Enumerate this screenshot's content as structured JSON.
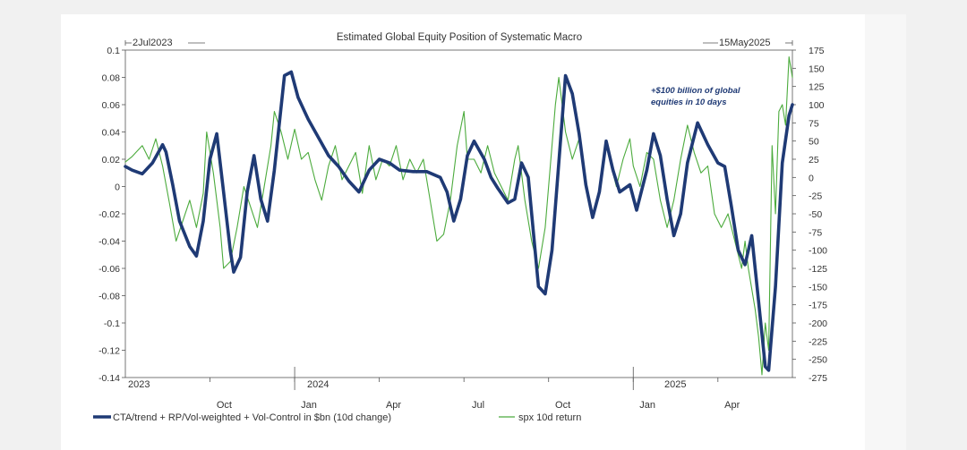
{
  "chart_data": {
    "type": "line",
    "title": "Estimated Global Equity Position of Systematic Macro",
    "range_start_label": "2Jul2023",
    "range_end_label": "15May2025",
    "annotation": "+$100 billion of global\nequities in 10 days",
    "year_labels": [
      "2023",
      "2024",
      "2025"
    ],
    "x_tick_labels": [
      "Oct",
      "Jan",
      "Apr",
      "Jul",
      "Oct",
      "Jan",
      "Apr"
    ],
    "left_axis": {
      "ylim": [
        -0.14,
        0.1
      ],
      "ticks": [
        "0.1",
        "0.08",
        "0.06",
        "0.04",
        "0.02",
        "0",
        "-0.02",
        "-0.04",
        "-0.06",
        "-0.08",
        "-0.1",
        "-0.12",
        "-0.14"
      ]
    },
    "right_axis": {
      "ylim": [
        -275,
        175
      ],
      "ticks": [
        "175",
        "150",
        "125",
        "100",
        "75",
        "50",
        "25",
        "0",
        "-25",
        "-50",
        "-75",
        "-100",
        "-125",
        "-150",
        "-175",
        "-200",
        "-225",
        "-250",
        "-275"
      ]
    },
    "legend": {
      "position": "bottom",
      "entries": [
        "CTA/trend + RP/Vol-weighted + Vol-Control in $bn (10d change)",
        "spx 10d return"
      ]
    },
    "colors": {
      "cta": "#1f3a75",
      "spx": "#4cab3d"
    },
    "series": [
      {
        "name": "CTA/trend + RP/Vol-weighted + Vol-Control in $bn (10d change)",
        "axis": "right",
        "color": "#1f3a75",
        "points": [
          [
            2023.5,
            15
          ],
          [
            2023.52,
            10
          ],
          [
            2023.55,
            5
          ],
          [
            2023.58,
            20
          ],
          [
            2023.61,
            45
          ],
          [
            2023.62,
            35
          ],
          [
            2023.64,
            -10
          ],
          [
            2023.66,
            -60
          ],
          [
            2023.69,
            -95
          ],
          [
            2023.71,
            -108
          ],
          [
            2023.73,
            -60
          ],
          [
            2023.75,
            25
          ],
          [
            2023.77,
            60
          ],
          [
            2023.79,
            -20
          ],
          [
            2023.81,
            -100
          ],
          [
            2023.82,
            -130
          ],
          [
            2023.84,
            -110
          ],
          [
            2023.86,
            -20
          ],
          [
            2023.88,
            30
          ],
          [
            2023.9,
            -30
          ],
          [
            2023.92,
            -60
          ],
          [
            2023.94,
            10
          ],
          [
            2023.97,
            140
          ],
          [
            2023.99,
            145
          ],
          [
            2024.01,
            110
          ],
          [
            2024.04,
            80
          ],
          [
            2024.07,
            55
          ],
          [
            2024.1,
            30
          ],
          [
            2024.13,
            15
          ],
          [
            2024.16,
            -5
          ],
          [
            2024.19,
            -20
          ],
          [
            2024.22,
            10
          ],
          [
            2024.25,
            25
          ],
          [
            2024.28,
            20
          ],
          [
            2024.31,
            10
          ],
          [
            2024.35,
            8
          ],
          [
            2024.39,
            8
          ],
          [
            2024.43,
            0
          ],
          [
            2024.45,
            -20
          ],
          [
            2024.47,
            -60
          ],
          [
            2024.49,
            -30
          ],
          [
            2024.51,
            30
          ],
          [
            2024.53,
            50
          ],
          [
            2024.56,
            25
          ],
          [
            2024.58,
            0
          ],
          [
            2024.6,
            -15
          ],
          [
            2024.63,
            -35
          ],
          [
            2024.65,
            -30
          ],
          [
            2024.67,
            20
          ],
          [
            2024.69,
            0
          ],
          [
            2024.7,
            -50
          ],
          [
            2024.72,
            -150
          ],
          [
            2024.74,
            -160
          ],
          [
            2024.76,
            -100
          ],
          [
            2024.78,
            20
          ],
          [
            2024.8,
            140
          ],
          [
            2024.82,
            115
          ],
          [
            2024.84,
            60
          ],
          [
            2024.86,
            -10
          ],
          [
            2024.88,
            -55
          ],
          [
            2024.9,
            -20
          ],
          [
            2024.92,
            50
          ],
          [
            2024.94,
            10
          ],
          [
            2024.96,
            -20
          ],
          [
            2024.99,
            -10
          ],
          [
            2025.01,
            -45
          ],
          [
            2025.04,
            10
          ],
          [
            2025.06,
            60
          ],
          [
            2025.08,
            30
          ],
          [
            2025.1,
            -30
          ],
          [
            2025.12,
            -80
          ],
          [
            2025.14,
            -50
          ],
          [
            2025.16,
            20
          ],
          [
            2025.19,
            75
          ],
          [
            2025.22,
            45
          ],
          [
            2025.25,
            20
          ],
          [
            2025.27,
            15
          ],
          [
            2025.29,
            -40
          ],
          [
            2025.31,
            -100
          ],
          [
            2025.33,
            -120
          ],
          [
            2025.35,
            -80
          ],
          [
            2025.37,
            -170
          ],
          [
            2025.39,
            -260
          ],
          [
            2025.4,
            -265
          ],
          [
            2025.42,
            -150
          ],
          [
            2025.44,
            20
          ],
          [
            2025.46,
            85
          ],
          [
            2025.47,
            100
          ]
        ]
      },
      {
        "name": "spx 10d return",
        "axis": "left",
        "color": "#4cab3d",
        "points": [
          [
            2023.5,
            0.018
          ],
          [
            2023.52,
            0.022
          ],
          [
            2023.55,
            0.03
          ],
          [
            2023.57,
            0.02
          ],
          [
            2023.59,
            0.035
          ],
          [
            2023.61,
            0.015
          ],
          [
            2023.63,
            -0.012
          ],
          [
            2023.65,
            -0.04
          ],
          [
            2023.67,
            -0.025
          ],
          [
            2023.69,
            -0.01
          ],
          [
            2023.71,
            -0.03
          ],
          [
            2023.73,
            -0.005
          ],
          [
            2023.74,
            0.04
          ],
          [
            2023.76,
            0.01
          ],
          [
            2023.78,
            -0.03
          ],
          [
            2023.79,
            -0.06
          ],
          [
            2023.81,
            -0.055
          ],
          [
            2023.83,
            -0.03
          ],
          [
            2023.85,
            0.0
          ],
          [
            2023.87,
            -0.015
          ],
          [
            2023.89,
            -0.03
          ],
          [
            2023.91,
            0.0
          ],
          [
            2023.93,
            0.03
          ],
          [
            2023.94,
            0.055
          ],
          [
            2023.96,
            0.04
          ],
          [
            2023.98,
            0.02
          ],
          [
            2024.0,
            0.042
          ],
          [
            2024.02,
            0.02
          ],
          [
            2024.04,
            0.025
          ],
          [
            2024.06,
            0.005
          ],
          [
            2024.08,
            -0.01
          ],
          [
            2024.1,
            0.015
          ],
          [
            2024.12,
            0.03
          ],
          [
            2024.14,
            0.005
          ],
          [
            2024.16,
            0.015
          ],
          [
            2024.18,
            0.025
          ],
          [
            2024.2,
            -0.005
          ],
          [
            2024.22,
            0.03
          ],
          [
            2024.24,
            0.005
          ],
          [
            2024.26,
            0.02
          ],
          [
            2024.28,
            0.015
          ],
          [
            2024.3,
            0.03
          ],
          [
            2024.32,
            0.005
          ],
          [
            2024.34,
            0.02
          ],
          [
            2024.36,
            0.01
          ],
          [
            2024.38,
            0.02
          ],
          [
            2024.4,
            -0.01
          ],
          [
            2024.42,
            -0.04
          ],
          [
            2024.44,
            -0.035
          ],
          [
            2024.46,
            -0.01
          ],
          [
            2024.48,
            0.03
          ],
          [
            2024.5,
            0.055
          ],
          [
            2024.51,
            0.02
          ],
          [
            2024.53,
            0.02
          ],
          [
            2024.55,
            0.01
          ],
          [
            2024.57,
            0.03
          ],
          [
            2024.59,
            0.01
          ],
          [
            2024.61,
            0.0
          ],
          [
            2024.63,
            -0.01
          ],
          [
            2024.65,
            0.02
          ],
          [
            2024.66,
            0.03
          ],
          [
            2024.68,
            -0.01
          ],
          [
            2024.7,
            -0.04
          ],
          [
            2024.72,
            -0.06
          ],
          [
            2024.74,
            -0.03
          ],
          [
            2024.75,
            0.0
          ],
          [
            2024.77,
            0.06
          ],
          [
            2024.78,
            0.08
          ],
          [
            2024.8,
            0.04
          ],
          [
            2024.82,
            0.02
          ],
          [
            2024.84,
            0.035
          ],
          [
            2024.86,
            0.0
          ],
          [
            2024.88,
            -0.02
          ],
          [
            2024.9,
            -0.005
          ],
          [
            2024.92,
            0.03
          ],
          [
            2024.94,
            0.01
          ],
          [
            2024.95,
            0.0
          ],
          [
            2024.97,
            0.02
          ],
          [
            2024.99,
            0.035
          ],
          [
            2025.0,
            0.015
          ],
          [
            2025.02,
            0.0
          ],
          [
            2025.04,
            0.025
          ],
          [
            2025.06,
            0.02
          ],
          [
            2025.08,
            -0.01
          ],
          [
            2025.1,
            -0.03
          ],
          [
            2025.12,
            -0.01
          ],
          [
            2025.14,
            0.02
          ],
          [
            2025.16,
            0.045
          ],
          [
            2025.18,
            0.025
          ],
          [
            2025.2,
            0.01
          ],
          [
            2025.22,
            0.015
          ],
          [
            2025.24,
            -0.02
          ],
          [
            2025.26,
            -0.03
          ],
          [
            2025.28,
            -0.02
          ],
          [
            2025.3,
            -0.04
          ],
          [
            2025.32,
            -0.06
          ],
          [
            2025.33,
            -0.04
          ],
          [
            2025.34,
            -0.06
          ],
          [
            2025.36,
            -0.09
          ],
          [
            2025.37,
            -0.11
          ],
          [
            2025.38,
            -0.138
          ],
          [
            2025.39,
            -0.1
          ],
          [
            2025.4,
            -0.12
          ],
          [
            2025.41,
            0.03
          ],
          [
            2025.42,
            -0.02
          ],
          [
            2025.43,
            0.055
          ],
          [
            2025.44,
            0.06
          ],
          [
            2025.45,
            0.045
          ],
          [
            2025.46,
            0.095
          ],
          [
            2025.47,
            0.08
          ]
        ]
      }
    ]
  }
}
